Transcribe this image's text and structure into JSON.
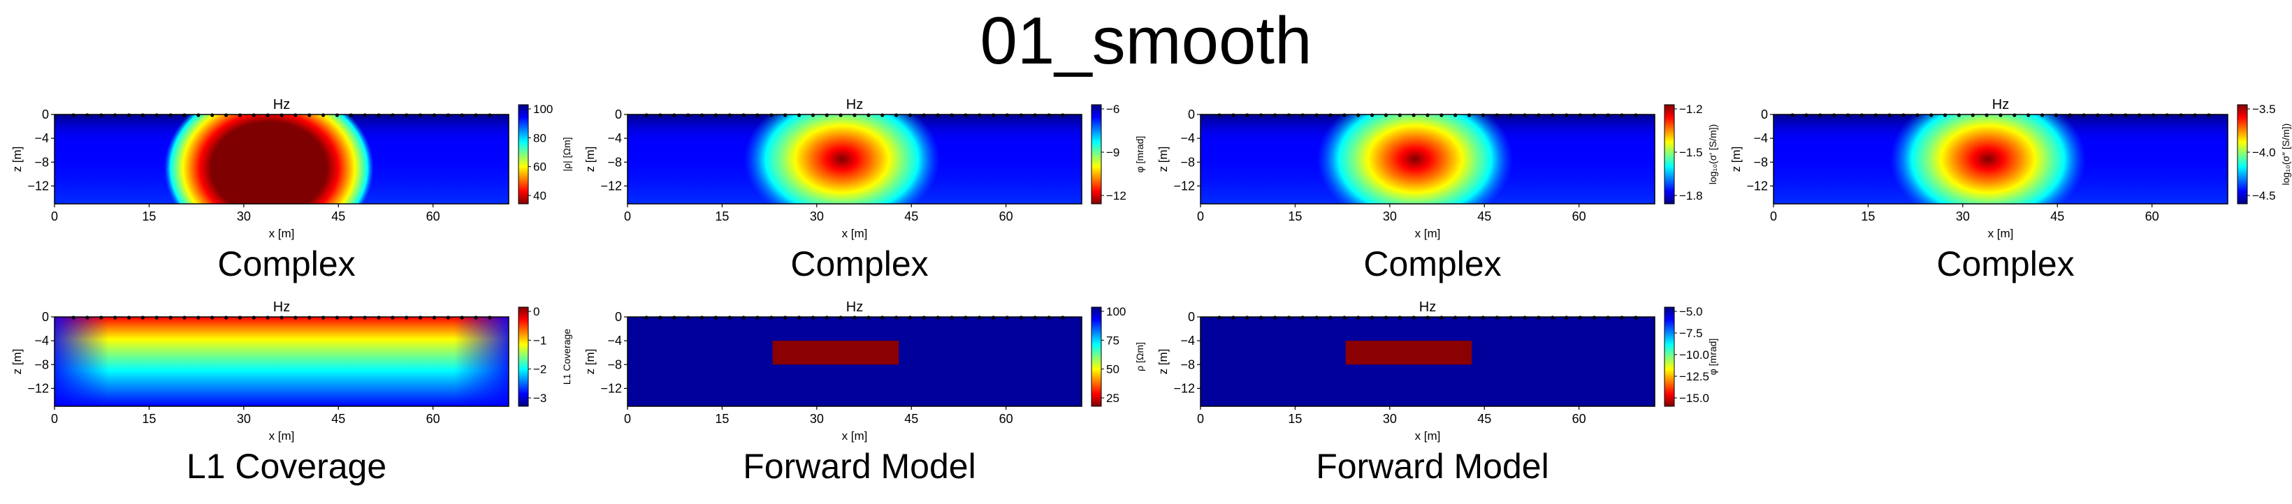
{
  "title": "01_smooth",
  "colors": {
    "jet": [
      "#00007f",
      "#0000ff",
      "#007fff",
      "#00ffff",
      "#7fff7f",
      "#ffff00",
      "#ff7f00",
      "#ff0000",
      "#7f0000"
    ],
    "background_model": "#00009a",
    "anomaly": "#8b0000",
    "electrode": "#000000"
  },
  "panels": [
    {
      "plot_title": "Hz",
      "subtitle": "Complex",
      "xlabel": "x [m]",
      "ylabel": "z [m]",
      "xticks": [
        "0",
        "15",
        "30",
        "45",
        "60"
      ],
      "yticks": [
        "0",
        "−4",
        "−8",
        "−12"
      ],
      "colorbar": {
        "label": "|ρ| [Ωm]",
        "ticks": [
          "100",
          "80",
          "60",
          "40"
        ],
        "reversed_cmap": true
      },
      "chart_data": {
        "type": "heatmap",
        "title": "Hz",
        "xlabel": "x [m]",
        "ylabel": "z [m]",
        "xlim": [
          0,
          72
        ],
        "ylim": [
          -15,
          0
        ],
        "colorbar_range": [
          30,
          100
        ],
        "colorbar_label": "|ρ| [Ωm]",
        "feature": "high-resistivity anomaly centered near x≈34 m, z≈−6 to −15 m"
      }
    },
    {
      "plot_title": "Hz",
      "subtitle": "Complex",
      "xlabel": "x [m]",
      "ylabel": "z [m]",
      "xticks": [
        "0",
        "15",
        "30",
        "45",
        "60"
      ],
      "yticks": [
        "0",
        "−4",
        "−8",
        "−12"
      ],
      "colorbar": {
        "label": "φ [mrad]",
        "ticks": [
          "−6",
          "−9",
          "−12"
        ],
        "reversed_cmap": true
      },
      "chart_data": {
        "type": "heatmap",
        "title": "Hz",
        "xlabel": "x [m]",
        "ylabel": "z [m]",
        "xlim": [
          0,
          72
        ],
        "ylim": [
          -15,
          0
        ],
        "colorbar_range": [
          -14,
          -4
        ],
        "colorbar_label": "φ [mrad]",
        "feature": "negative phase anomaly centered near x≈34 m, z≈−8 m"
      }
    },
    {
      "plot_title": "",
      "subtitle": "Complex",
      "xlabel": "x [m]",
      "ylabel": "z [m]",
      "xticks": [
        "0",
        "15",
        "30",
        "45",
        "60"
      ],
      "yticks": [
        "0",
        "−4",
        "−8",
        "−12"
      ],
      "colorbar": {
        "label": "log₁₀(σ′ [S/m])",
        "ticks": [
          "−1.2",
          "−1.5",
          "−1.8"
        ],
        "reversed_cmap": false
      },
      "chart_data": {
        "type": "heatmap",
        "title": "",
        "xlabel": "x [m]",
        "ylabel": "z [m]",
        "xlim": [
          0,
          72
        ],
        "ylim": [
          -15,
          0
        ],
        "colorbar_range": [
          -2.0,
          -1.1
        ],
        "colorbar_label": "log₁₀(σ′ [S/m])",
        "feature": "high real-conductivity anomaly centered near x≈34 m, z≈−7 m"
      }
    },
    {
      "plot_title": "Hz",
      "subtitle": "Complex",
      "xlabel": "x [m]",
      "ylabel": "z [m]",
      "xticks": [
        "0",
        "15",
        "30",
        "45",
        "60"
      ],
      "yticks": [
        "0",
        "−4",
        "−8",
        "−12"
      ],
      "colorbar": {
        "label": "log₁₀(σ″ [S/m])",
        "ticks": [
          "−3.5",
          "−4.0",
          "−4.5"
        ],
        "reversed_cmap": false
      },
      "chart_data": {
        "type": "heatmap",
        "title": "Hz",
        "xlabel": "x [m]",
        "ylabel": "z [m]",
        "xlim": [
          0,
          72
        ],
        "ylim": [
          -15,
          0
        ],
        "colorbar_range": [
          -4.7,
          -3.2
        ],
        "colorbar_label": "log₁₀(σ″ [S/m])",
        "feature": "high imaginary-conductivity anomaly centered near x≈34 m, z≈−7 m"
      }
    },
    {
      "plot_title": "Hz",
      "subtitle": "L1 Coverage",
      "xlabel": "x [m]",
      "ylabel": "z [m]",
      "xticks": [
        "0",
        "15",
        "30",
        "45",
        "60"
      ],
      "yticks": [
        "0",
        "−4",
        "−8",
        "−12"
      ],
      "colorbar": {
        "label": "L1 Coverage",
        "ticks": [
          "0",
          "−1",
          "−2",
          "−3"
        ],
        "reversed_cmap": false
      },
      "chart_data": {
        "type": "heatmap",
        "title": "Hz",
        "xlabel": "x [m]",
        "ylabel": "z [m]",
        "xlim": [
          0,
          72
        ],
        "ylim": [
          -15,
          0
        ],
        "colorbar_range": [
          -3.6,
          0
        ],
        "colorbar_label": "L1 Coverage",
        "feature": "coverage highest near surface under electrodes, decreasing with depth"
      }
    },
    {
      "plot_title": "Hz",
      "subtitle": "Forward Model",
      "xlabel": "x [m]",
      "ylabel": "z [m]",
      "xticks": [
        "0",
        "15",
        "30",
        "45",
        "60"
      ],
      "yticks": [
        "0",
        "−4",
        "−8",
        "−12"
      ],
      "colorbar": {
        "label": "ρ [Ωm]",
        "ticks": [
          "100",
          "75",
          "50",
          "25"
        ],
        "reversed_cmap": true
      },
      "chart_data": {
        "type": "heatmap",
        "title": "Hz",
        "xlabel": "x [m]",
        "ylabel": "z [m]",
        "xlim": [
          0,
          72
        ],
        "ylim": [
          -15,
          0
        ],
        "colorbar_range": [
          10,
          100
        ],
        "colorbar_label": "ρ [Ωm]",
        "background": 100,
        "anomaly": {
          "value": 10,
          "x": [
            23,
            43
          ],
          "z": [
            -8,
            -4
          ]
        }
      }
    },
    {
      "plot_title": "Hz",
      "subtitle": "Forward Model",
      "xlabel": "x [m]",
      "ylabel": "z [m]",
      "xticks": [
        "0",
        "15",
        "30",
        "45",
        "60"
      ],
      "yticks": [
        "0",
        "−4",
        "−8",
        "−12"
      ],
      "colorbar": {
        "label": "φ [mrad]",
        "ticks": [
          "−5.0",
          "−7.5",
          "−10.0",
          "−12.5",
          "−15.0"
        ],
        "reversed_cmap": true
      },
      "chart_data": {
        "type": "heatmap",
        "title": "Hz",
        "xlabel": "x [m]",
        "ylabel": "z [m]",
        "xlim": [
          0,
          72
        ],
        "ylim": [
          -15,
          0
        ],
        "colorbar_range": [
          -15,
          -5
        ],
        "colorbar_label": "φ [mrad]",
        "background": -5,
        "anomaly": {
          "value": -15,
          "x": [
            23,
            43
          ],
          "z": [
            -8,
            -4
          ]
        }
      }
    }
  ]
}
